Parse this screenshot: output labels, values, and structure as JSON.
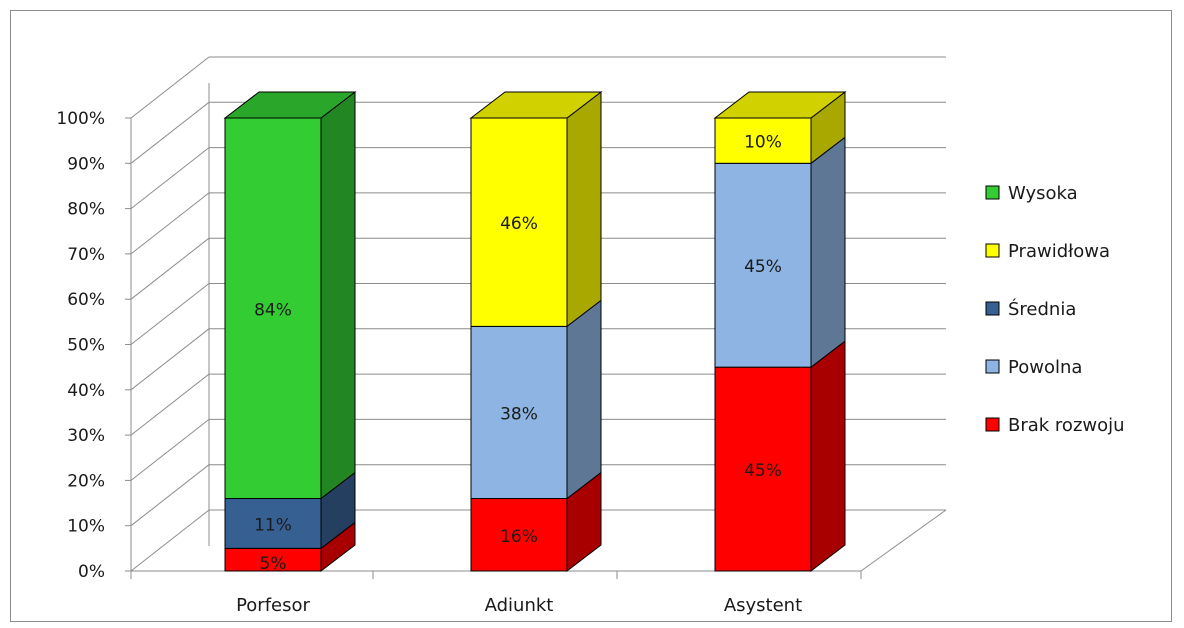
{
  "chart_data": {
    "type": "bar",
    "stacked": true,
    "percent_stacked": true,
    "three_d": true,
    "categories": [
      "Porfesor",
      "Adiunkt",
      "Asystent"
    ],
    "series": [
      {
        "name": "Brak rozwoju",
        "values": [
          5,
          16,
          45
        ],
        "labels": [
          "5%",
          "16%",
          "45%"
        ],
        "color": "#ff0000"
      },
      {
        "name": "Powolna",
        "values": [
          0,
          38,
          45
        ],
        "labels": [
          "",
          "38%",
          "45%"
        ],
        "color": "#8db4e2"
      },
      {
        "name": "Średnia",
        "values": [
          11,
          0,
          0
        ],
        "labels": [
          "11%",
          "",
          ""
        ],
        "color": "#366092"
      },
      {
        "name": "Prawidłowa",
        "values": [
          0,
          46,
          10
        ],
        "labels": [
          "",
          "46%",
          "10%"
        ],
        "color": "#ffff00"
      },
      {
        "name": "Wysoka",
        "values": [
          84,
          0,
          0
        ],
        "labels": [
          "84%",
          "",
          ""
        ],
        "color": "#33cc33"
      }
    ],
    "legend_order": [
      "Wysoka",
      "Prawidłowa",
      "Średnia",
      "Powolna",
      "Brak rozwoju"
    ],
    "y_ticks": [
      "0%",
      "10%",
      "20%",
      "30%",
      "40%",
      "50%",
      "60%",
      "70%",
      "80%",
      "90%",
      "100%"
    ],
    "ylim": [
      0,
      100
    ],
    "grid": true,
    "legend_position": "right"
  }
}
